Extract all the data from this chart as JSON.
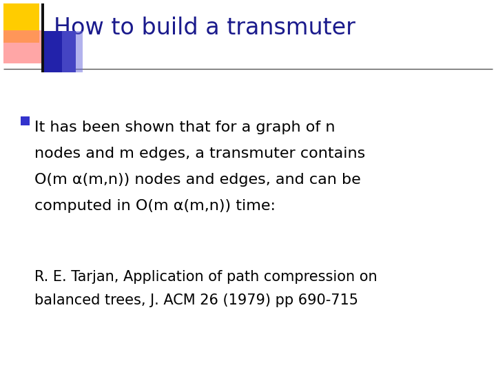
{
  "title": "How to build a transmuter",
  "title_color": "#1a1a8c",
  "title_fontsize": 24,
  "bg_color": "#ffffff",
  "bullet_text_line1": "It has been shown that for a graph of n",
  "bullet_text_line2": "nodes and m edges, a transmuter contains",
  "bullet_text_line3": "O(m α(m,n)) nodes and edges, and can be",
  "bullet_text_line4": "computed in O(m α(m,n)) time:",
  "ref_line1": "R. E. Tarjan, Application of path compression on",
  "ref_line2": "balanced trees, J. ACM 26 (1979) pp 690-715",
  "bullet_color": "#3333cc",
  "body_color": "#000000",
  "body_fontsize": 16,
  "ref_fontsize": 15,
  "header_line_color": "#555555"
}
